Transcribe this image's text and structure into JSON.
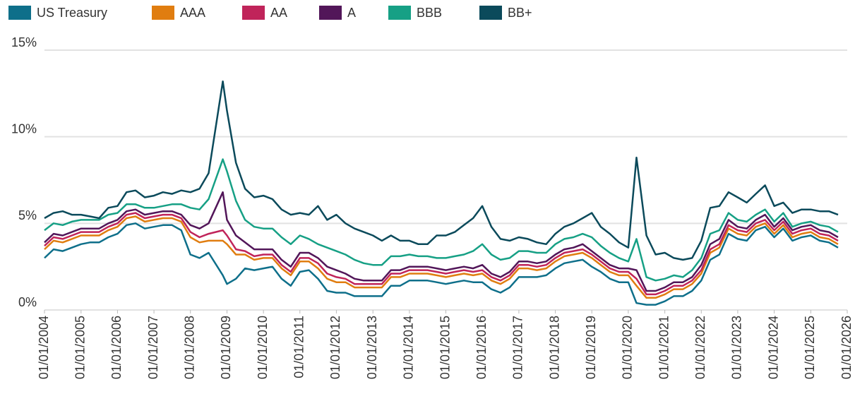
{
  "chart_data": {
    "type": "line",
    "x": [
      "2004-01-01",
      "2004-04-01",
      "2004-07-01",
      "2004-10-01",
      "2005-01-01",
      "2005-04-01",
      "2005-07-01",
      "2005-10-01",
      "2006-01-01",
      "2006-04-01",
      "2006-07-01",
      "2006-10-01",
      "2007-01-01",
      "2007-04-01",
      "2007-07-01",
      "2007-10-01",
      "2008-01-01",
      "2008-04-01",
      "2008-07-01",
      "2008-11-20",
      "2009-01-01",
      "2009-04-01",
      "2009-07-01",
      "2009-10-01",
      "2010-01-01",
      "2010-04-01",
      "2010-07-01",
      "2010-10-01",
      "2011-01-01",
      "2011-04-01",
      "2011-07-01",
      "2011-10-01",
      "2012-01-01",
      "2012-04-01",
      "2012-07-01",
      "2012-10-01",
      "2013-01-01",
      "2013-04-01",
      "2013-07-01",
      "2013-10-01",
      "2014-01-01",
      "2014-04-01",
      "2014-07-01",
      "2014-10-01",
      "2015-01-01",
      "2015-04-01",
      "2015-07-01",
      "2015-10-01",
      "2016-01-01",
      "2016-04-01",
      "2016-07-01",
      "2016-10-01",
      "2017-01-01",
      "2017-04-01",
      "2017-07-01",
      "2017-10-01",
      "2018-01-01",
      "2018-04-01",
      "2018-07-01",
      "2018-10-01",
      "2019-01-01",
      "2019-04-01",
      "2019-07-01",
      "2019-10-01",
      "2020-01-01",
      "2020-03-23",
      "2020-07-01",
      "2020-10-01",
      "2021-01-01",
      "2021-04-01",
      "2021-07-01",
      "2021-10-01",
      "2022-01-01",
      "2022-04-01",
      "2022-07-01",
      "2022-10-01",
      "2023-01-01",
      "2023-04-01",
      "2023-07-01",
      "2023-10-01",
      "2024-01-01",
      "2024-04-01",
      "2024-07-01",
      "2024-10-01",
      "2025-01-01",
      "2025-04-01",
      "2025-07-01",
      "2025-10-01"
    ],
    "series": [
      {
        "name": "US Treasury",
        "color": "#0e6f8a",
        "values": [
          3.0,
          3.5,
          3.4,
          3.6,
          3.8,
          3.9,
          3.9,
          4.2,
          4.4,
          4.9,
          5.0,
          4.7,
          4.8,
          4.9,
          4.9,
          4.6,
          3.2,
          3.0,
          3.3,
          2.0,
          1.5,
          1.8,
          2.4,
          2.3,
          2.4,
          2.5,
          1.8,
          1.4,
          2.2,
          2.3,
          1.8,
          1.1,
          1.0,
          1.0,
          0.8,
          0.8,
          0.8,
          0.8,
          1.4,
          1.4,
          1.7,
          1.7,
          1.7,
          1.6,
          1.5,
          1.6,
          1.7,
          1.6,
          1.6,
          1.2,
          1.0,
          1.3,
          1.9,
          1.9,
          1.9,
          2.0,
          2.4,
          2.7,
          2.8,
          2.9,
          2.5,
          2.2,
          1.8,
          1.6,
          1.6,
          0.4,
          0.3,
          0.3,
          0.5,
          0.8,
          0.8,
          1.1,
          1.7,
          2.9,
          3.2,
          4.4,
          4.1,
          4.0,
          4.6,
          4.8,
          4.2,
          4.7,
          4.0,
          4.2,
          4.3,
          4.0,
          3.9,
          3.6
        ]
      },
      {
        "name": "AAA",
        "color": "#e07d10",
        "values": [
          3.5,
          4.0,
          3.9,
          4.1,
          4.3,
          4.3,
          4.3,
          4.6,
          4.8,
          5.3,
          5.4,
          5.1,
          5.2,
          5.3,
          5.3,
          5.1,
          4.2,
          3.9,
          4.0,
          4.0,
          3.8,
          3.2,
          3.2,
          2.9,
          3.0,
          3.0,
          2.4,
          2.0,
          2.8,
          2.8,
          2.4,
          1.8,
          1.6,
          1.6,
          1.3,
          1.3,
          1.3,
          1.3,
          1.9,
          1.9,
          2.1,
          2.1,
          2.1,
          2.0,
          1.9,
          2.0,
          2.1,
          2.0,
          2.1,
          1.7,
          1.5,
          1.8,
          2.4,
          2.4,
          2.3,
          2.4,
          2.8,
          3.1,
          3.2,
          3.3,
          3.0,
          2.6,
          2.2,
          2.0,
          2.0,
          1.4,
          0.7,
          0.7,
          0.9,
          1.2,
          1.2,
          1.5,
          2.1,
          3.3,
          3.6,
          4.7,
          4.4,
          4.3,
          4.8,
          5.0,
          4.4,
          4.9,
          4.2,
          4.4,
          4.5,
          4.2,
          4.1,
          3.8
        ]
      },
      {
        "name": "AA",
        "color": "#c0245a",
        "values": [
          3.7,
          4.2,
          4.1,
          4.3,
          4.5,
          4.5,
          4.5,
          4.8,
          5.0,
          5.5,
          5.6,
          5.3,
          5.4,
          5.5,
          5.5,
          5.3,
          4.5,
          4.2,
          4.4,
          4.6,
          4.3,
          3.5,
          3.4,
          3.1,
          3.2,
          3.2,
          2.6,
          2.2,
          3.0,
          3.0,
          2.7,
          2.1,
          1.9,
          1.8,
          1.5,
          1.5,
          1.5,
          1.5,
          2.1,
          2.1,
          2.3,
          2.3,
          2.3,
          2.2,
          2.1,
          2.2,
          2.3,
          2.2,
          2.3,
          1.9,
          1.7,
          2.0,
          2.6,
          2.6,
          2.5,
          2.6,
          3.0,
          3.3,
          3.4,
          3.5,
          3.2,
          2.8,
          2.4,
          2.2,
          2.2,
          1.8,
          0.9,
          0.9,
          1.1,
          1.4,
          1.4,
          1.7,
          2.3,
          3.5,
          3.8,
          4.9,
          4.6,
          4.5,
          5.0,
          5.2,
          4.6,
          5.1,
          4.4,
          4.6,
          4.7,
          4.4,
          4.3,
          4.0
        ]
      },
      {
        "name": "A",
        "color": "#521659",
        "values": [
          3.9,
          4.4,
          4.3,
          4.5,
          4.7,
          4.7,
          4.7,
          5.0,
          5.2,
          5.7,
          5.8,
          5.5,
          5.6,
          5.7,
          5.7,
          5.5,
          4.9,
          4.7,
          5.0,
          6.8,
          5.2,
          4.3,
          3.9,
          3.5,
          3.5,
          3.5,
          2.9,
          2.5,
          3.3,
          3.3,
          3.0,
          2.5,
          2.3,
          2.1,
          1.8,
          1.7,
          1.7,
          1.7,
          2.3,
          2.3,
          2.5,
          2.5,
          2.5,
          2.4,
          2.3,
          2.4,
          2.5,
          2.4,
          2.6,
          2.1,
          1.9,
          2.2,
          2.8,
          2.8,
          2.7,
          2.8,
          3.2,
          3.5,
          3.6,
          3.8,
          3.4,
          3.0,
          2.6,
          2.4,
          2.4,
          2.3,
          1.1,
          1.1,
          1.3,
          1.6,
          1.6,
          1.9,
          2.6,
          3.8,
          4.1,
          5.2,
          4.8,
          4.7,
          5.2,
          5.5,
          4.8,
          5.3,
          4.6,
          4.8,
          4.9,
          4.6,
          4.5,
          4.2
        ]
      },
      {
        "name": "BBB",
        "color": "#16a085",
        "values": [
          4.6,
          5.0,
          4.9,
          5.1,
          5.2,
          5.2,
          5.2,
          5.5,
          5.6,
          6.1,
          6.1,
          5.9,
          5.9,
          6.0,
          6.1,
          6.1,
          5.9,
          5.8,
          6.4,
          8.7,
          8.0,
          6.3,
          5.2,
          4.8,
          4.7,
          4.7,
          4.2,
          3.8,
          4.3,
          4.1,
          3.8,
          3.6,
          3.4,
          3.2,
          2.9,
          2.7,
          2.6,
          2.6,
          3.1,
          3.1,
          3.2,
          3.1,
          3.1,
          3.0,
          3.0,
          3.1,
          3.2,
          3.4,
          3.8,
          3.2,
          2.9,
          3.0,
          3.4,
          3.4,
          3.3,
          3.3,
          3.8,
          4.1,
          4.2,
          4.4,
          4.2,
          3.7,
          3.3,
          3.0,
          2.8,
          4.1,
          1.9,
          1.7,
          1.8,
          2.0,
          1.9,
          2.3,
          3.0,
          4.4,
          4.6,
          5.6,
          5.2,
          5.1,
          5.5,
          5.8,
          5.1,
          5.6,
          4.8,
          5.0,
          5.1,
          4.9,
          4.8,
          4.5
        ]
      },
      {
        "name": "BB+",
        "color": "#0b4a5b",
        "values": [
          5.3,
          5.6,
          5.7,
          5.5,
          5.5,
          5.4,
          5.3,
          5.9,
          6.0,
          6.8,
          6.9,
          6.5,
          6.6,
          6.8,
          6.7,
          6.9,
          6.8,
          7.0,
          7.9,
          13.2,
          11.5,
          8.5,
          7.0,
          6.5,
          6.6,
          6.4,
          5.8,
          5.5,
          5.6,
          5.5,
          6.0,
          5.2,
          5.5,
          5.0,
          4.7,
          4.5,
          4.3,
          4.0,
          4.3,
          4.0,
          4.0,
          3.8,
          3.8,
          4.3,
          4.3,
          4.5,
          4.9,
          5.3,
          6.0,
          4.8,
          4.1,
          4.0,
          4.2,
          4.1,
          3.9,
          3.8,
          4.4,
          4.8,
          5.0,
          5.3,
          5.6,
          4.8,
          4.4,
          3.9,
          3.6,
          8.8,
          4.3,
          3.2,
          3.3,
          3.0,
          2.9,
          3.0,
          4.0,
          5.9,
          6.0,
          6.8,
          6.5,
          6.2,
          6.7,
          7.2,
          6.0,
          6.2,
          5.6,
          5.8,
          5.8,
          5.7,
          5.7,
          5.5
        ]
      }
    ],
    "xlim": [
      "2004-01-01",
      "2026-01-01"
    ],
    "xticks": [
      {
        "value": "2004-01-01",
        "label": "01/01/2004"
      },
      {
        "value": "2005-01-01",
        "label": "01/01/2005"
      },
      {
        "value": "2006-01-01",
        "label": "01/01/2006"
      },
      {
        "value": "2007-01-01",
        "label": "01/01/2007"
      },
      {
        "value": "2008-01-01",
        "label": "01/01/2008"
      },
      {
        "value": "2009-01-01",
        "label": "01/01/2009"
      },
      {
        "value": "2010-01-01",
        "label": "01/01/2010"
      },
      {
        "value": "2011-01-01",
        "label": "01/01/2011"
      },
      {
        "value": "2012-01-01",
        "label": "01/01/2012"
      },
      {
        "value": "2013-01-01",
        "label": "01/01/2013"
      },
      {
        "value": "2014-01-01",
        "label": "01/01/2014"
      },
      {
        "value": "2015-01-01",
        "label": "01/01/2015"
      },
      {
        "value": "2016-01-01",
        "label": "01/01/2016"
      },
      {
        "value": "2017-01-01",
        "label": "01/01/2017"
      },
      {
        "value": "2018-01-01",
        "label": "01/01/2018"
      },
      {
        "value": "2019-01-01",
        "label": "01/01/2019"
      },
      {
        "value": "2020-01-01",
        "label": "01/01/2020"
      },
      {
        "value": "2021-01-01",
        "label": "01/01/2021"
      },
      {
        "value": "2022-01-01",
        "label": "01/01/2022"
      },
      {
        "value": "2023-01-01",
        "label": "01/01/2023"
      },
      {
        "value": "2024-01-01",
        "label": "01/01/2024"
      },
      {
        "value": "2025-01-01",
        "label": "01/01/2025"
      },
      {
        "value": "2026-01-01",
        "label": "01/01/2026"
      }
    ],
    "ylim": [
      0,
      15
    ],
    "yticks": [
      {
        "value": 0,
        "label": "0%"
      },
      {
        "value": 5,
        "label": "5%"
      },
      {
        "value": 10,
        "label": "10%"
      },
      {
        "value": 15,
        "label": "15%"
      }
    ],
    "grid": true,
    "legend": "top"
  }
}
